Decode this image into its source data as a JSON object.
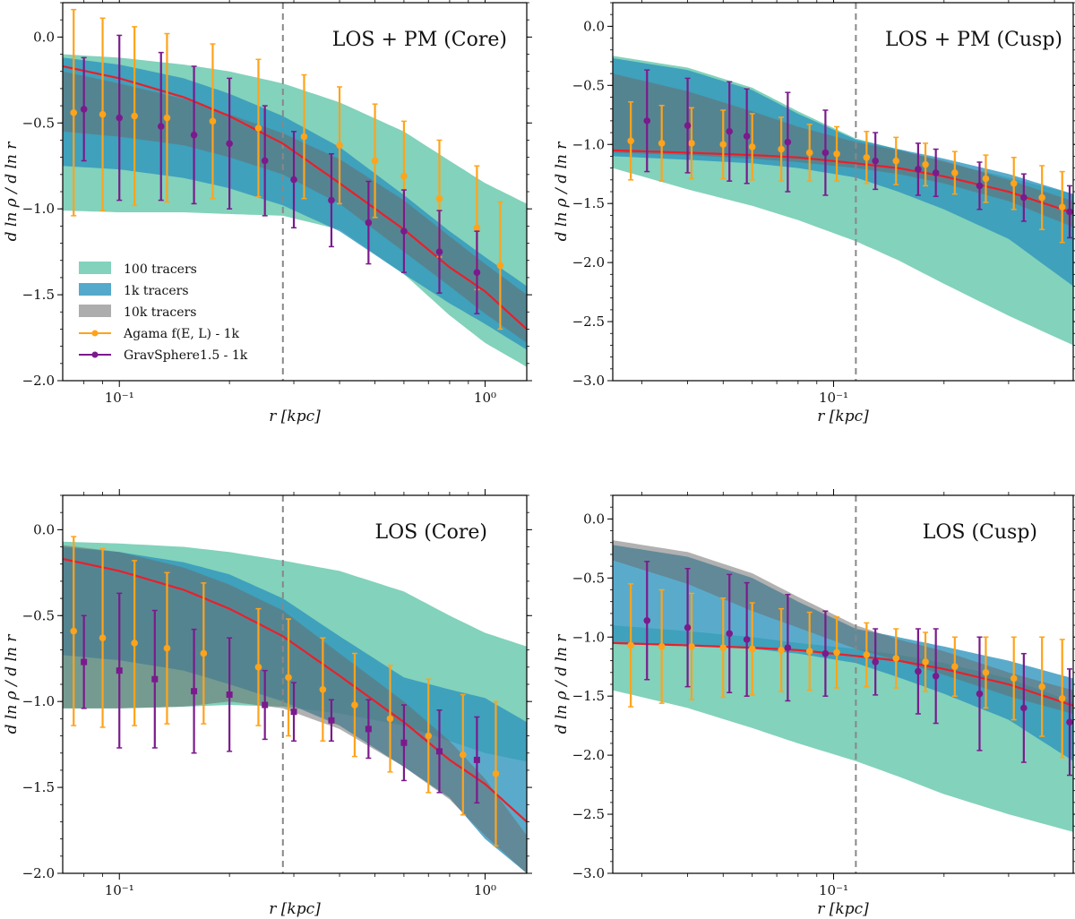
{
  "colors": {
    "band_100": "#7fd1b9",
    "band_1k": "#2b93bd",
    "band_10k": "#6a6a6a",
    "truth": "#e8202a",
    "agama": "#ffa31a",
    "gravsphere": "#7b1a8c",
    "rcut_line": "#888888"
  },
  "legend": {
    "items": [
      {
        "key": "band_100",
        "kind": "patch",
        "label": "100 tracers"
      },
      {
        "key": "band_1k",
        "kind": "patch",
        "label": "1k tracers"
      },
      {
        "key": "band_10k",
        "kind": "patch",
        "label": "10k tracers"
      },
      {
        "key": "agama",
        "kind": "errorbar",
        "label": "Agama f(E, L) - 1k"
      },
      {
        "key": "gravsphere",
        "kind": "errorbar",
        "label": "GravSphere1.5 - 1k"
      }
    ],
    "placement": "lower-left of top-left panel"
  },
  "chart_data": [
    {
      "id": "core_pm",
      "type": "line",
      "title": "LOS + PM (Core)",
      "xlabel": "r [kpc]",
      "ylabel": "d ln ρ / d ln r",
      "xscale": "log",
      "xlim": [
        0.07,
        1.3
      ],
      "ylim": [
        -2.0,
        0.2
      ],
      "xticks": [
        {
          "v": 0.1,
          "label": "10⁻¹"
        },
        {
          "v": 1.0,
          "label": "10⁰"
        }
      ],
      "yticks": [
        0.0,
        -0.5,
        -1.0,
        -1.5,
        -2.0
      ],
      "ytick_labels": [
        "0.0",
        "−0.5",
        "−1.0",
        "−1.5",
        "−2.0"
      ],
      "vline_x": 0.28,
      "bands": {
        "x": [
          0.07,
          0.1,
          0.15,
          0.2,
          0.28,
          0.4,
          0.6,
          0.8,
          1.0,
          1.3
        ],
        "band_100": {
          "upper": [
            -0.1,
            -0.12,
            -0.16,
            -0.2,
            -0.27,
            -0.38,
            -0.55,
            -0.72,
            -0.85,
            -0.97
          ],
          "lower": [
            -1.01,
            -1.02,
            -1.02,
            -1.03,
            -1.04,
            -1.12,
            -1.38,
            -1.62,
            -1.78,
            -1.92
          ]
        },
        "band_1k": {
          "upper": [
            -0.12,
            -0.16,
            -0.24,
            -0.33,
            -0.46,
            -0.64,
            -0.92,
            -1.13,
            -1.28,
            -1.45
          ],
          "lower": [
            -0.75,
            -0.77,
            -0.82,
            -0.88,
            -0.98,
            -1.13,
            -1.38,
            -1.55,
            -1.67,
            -1.82
          ]
        },
        "band_10k": {
          "upper": [
            -0.2,
            -0.27,
            -0.36,
            -0.45,
            -0.56,
            -0.71,
            -0.95,
            -1.16,
            -1.32,
            -1.5
          ],
          "lower": [
            -0.55,
            -0.58,
            -0.63,
            -0.7,
            -0.8,
            -0.97,
            -1.25,
            -1.45,
            -1.61,
            -1.78
          ]
        }
      },
      "truth": {
        "x": [
          0.07,
          0.1,
          0.15,
          0.2,
          0.28,
          0.4,
          0.6,
          0.8,
          1.0,
          1.3
        ],
        "y": [
          -0.17,
          -0.24,
          -0.35,
          -0.46,
          -0.62,
          -0.85,
          -1.12,
          -1.34,
          -1.48,
          -1.7
        ]
      },
      "agama": {
        "x": [
          0.075,
          0.09,
          0.11,
          0.135,
          0.18,
          0.24,
          0.32,
          0.4,
          0.5,
          0.6,
          0.75,
          0.95,
          1.1
        ],
        "y": [
          -0.44,
          -0.45,
          -0.46,
          -0.47,
          -0.49,
          -0.53,
          -0.58,
          -0.63,
          -0.72,
          -0.81,
          -0.94,
          -1.11,
          -1.33
        ],
        "err": [
          0.6,
          0.56,
          0.52,
          0.49,
          0.45,
          0.4,
          0.36,
          0.34,
          0.33,
          0.32,
          0.34,
          0.36,
          0.37
        ]
      },
      "gravsphere": {
        "x": [
          0.08,
          0.1,
          0.13,
          0.16,
          0.2,
          0.25,
          0.3,
          0.38,
          0.48,
          0.6,
          0.75,
          0.95
        ],
        "y": [
          -0.42,
          -0.47,
          -0.52,
          -0.57,
          -0.62,
          -0.72,
          -0.83,
          -0.95,
          -1.08,
          -1.13,
          -1.25,
          -1.37
        ],
        "err": [
          0.3,
          0.48,
          0.43,
          0.4,
          0.38,
          0.32,
          0.28,
          0.27,
          0.24,
          0.24,
          0.24,
          0.24
        ]
      }
    },
    {
      "id": "cusp_pm",
      "type": "line",
      "title": "LOS + PM (Cusp)",
      "xlabel": "r [kpc]",
      "ylabel": "d ln ρ / d ln r",
      "xscale": "log",
      "xlim": [
        0.025,
        0.45
      ],
      "ylim": [
        -3.0,
        0.2
      ],
      "xticks": [
        {
          "v": 0.1,
          "label": "10⁻¹"
        }
      ],
      "yticks": [
        0.0,
        -0.5,
        -1.0,
        -1.5,
        -2.0,
        -2.5,
        -3.0
      ],
      "ytick_labels": [
        "0.0",
        "−0.5",
        "−1.0",
        "−1.5",
        "−2.0",
        "−2.5",
        "−3.0"
      ],
      "vline_x": 0.115,
      "bands": {
        "x": [
          0.025,
          0.04,
          0.06,
          0.08,
          0.115,
          0.15,
          0.2,
          0.3,
          0.45
        ],
        "band_100": {
          "upper": [
            -0.25,
            -0.35,
            -0.52,
            -0.72,
            -0.95,
            -1.04,
            -1.15,
            -1.28,
            -1.42
          ],
          "lower": [
            -1.2,
            -1.38,
            -1.52,
            -1.64,
            -1.82,
            -1.98,
            -2.18,
            -2.45,
            -2.7
          ]
        },
        "band_1k": {
          "upper": [
            -0.27,
            -0.37,
            -0.54,
            -0.74,
            -0.96,
            -1.04,
            -1.12,
            -1.25,
            -1.42
          ],
          "lower": [
            -1.1,
            -1.13,
            -1.16,
            -1.2,
            -1.28,
            -1.4,
            -1.55,
            -1.8,
            -2.2
          ]
        },
        "band_10k": {
          "upper": [
            -0.4,
            -0.55,
            -0.72,
            -0.85,
            -0.98,
            -1.05,
            -1.14,
            -1.3,
            -1.48
          ],
          "lower": [
            -1.07,
            -1.09,
            -1.12,
            -1.15,
            -1.2,
            -1.25,
            -1.33,
            -1.48,
            -1.7
          ]
        }
      },
      "truth": {
        "x": [
          0.025,
          0.04,
          0.06,
          0.08,
          0.115,
          0.15,
          0.2,
          0.3,
          0.45
        ],
        "y": [
          -1.05,
          -1.07,
          -1.09,
          -1.11,
          -1.16,
          -1.2,
          -1.27,
          -1.4,
          -1.58
        ]
      },
      "agama": {
        "x": [
          0.028,
          0.034,
          0.041,
          0.05,
          0.06,
          0.072,
          0.086,
          0.102,
          0.123,
          0.148,
          0.178,
          0.214,
          0.26,
          0.31,
          0.37,
          0.42
        ],
        "y": [
          -0.97,
          -0.99,
          -0.99,
          -1.0,
          -1.02,
          -1.04,
          -1.07,
          -1.08,
          -1.11,
          -1.14,
          -1.17,
          -1.24,
          -1.29,
          -1.33,
          -1.45,
          -1.53
        ],
        "err": [
          0.33,
          0.32,
          0.3,
          0.29,
          0.28,
          0.27,
          0.24,
          0.23,
          0.22,
          0.2,
          0.18,
          0.18,
          0.2,
          0.22,
          0.27,
          0.3
        ]
      },
      "gravsphere": {
        "x": [
          0.031,
          0.04,
          0.052,
          0.058,
          0.075,
          0.095,
          0.13,
          0.17,
          0.19,
          0.25,
          0.33,
          0.44
        ],
        "y": [
          -0.8,
          -0.84,
          -0.89,
          -0.93,
          -0.98,
          -1.07,
          -1.14,
          -1.21,
          -1.24,
          -1.35,
          -1.45,
          -1.57
        ],
        "err": [
          0.43,
          0.4,
          0.42,
          0.4,
          0.42,
          0.36,
          0.24,
          0.22,
          0.2,
          0.2,
          0.2,
          0.22
        ]
      }
    },
    {
      "id": "core_los",
      "type": "line",
      "title": "LOS (Core)",
      "xlabel": "r [kpc]",
      "ylabel": "d ln ρ / d ln r",
      "xscale": "log",
      "xlim": [
        0.07,
        1.3
      ],
      "ylim": [
        -2.0,
        0.2
      ],
      "xticks": [
        {
          "v": 0.1,
          "label": "10⁻¹"
        },
        {
          "v": 1.0,
          "label": "10⁰"
        }
      ],
      "yticks": [
        0.0,
        -0.5,
        -1.0,
        -1.5,
        -2.0
      ],
      "ytick_labels": [
        "0.0",
        "−0.5",
        "−1.0",
        "−1.5",
        "−2.0"
      ],
      "vline_x": 0.28,
      "bands": {
        "x": [
          0.07,
          0.1,
          0.15,
          0.2,
          0.28,
          0.4,
          0.6,
          0.8,
          1.0,
          1.3
        ],
        "band_100": {
          "upper": [
            -0.07,
            -0.08,
            -0.1,
            -0.13,
            -0.18,
            -0.24,
            -0.36,
            -0.5,
            -0.6,
            -0.68
          ],
          "lower": [
            -1.04,
            -1.04,
            -1.03,
            -1.02,
            -1.03,
            -1.07,
            -1.14,
            -1.23,
            -1.3,
            -1.35
          ]
        },
        "band_1k": {
          "upper": [
            -0.1,
            -0.13,
            -0.19,
            -0.26,
            -0.4,
            -0.62,
            -0.86,
            -0.93,
            -0.98,
            -1.12
          ],
          "lower": [
            -0.73,
            -0.76,
            -0.82,
            -0.9,
            -1.0,
            -1.14,
            -1.38,
            -1.56,
            -1.8,
            -2.0
          ]
        },
        "band_10k": {
          "upper": [
            -0.09,
            -0.13,
            -0.22,
            -0.32,
            -0.47,
            -0.72,
            -1.0,
            -1.23,
            -1.45,
            -1.78
          ],
          "lower": [
            -1.04,
            -1.04,
            -1.03,
            -1.0,
            -1.04,
            -1.16,
            -1.38,
            -1.57,
            -1.78,
            -2.0
          ]
        }
      },
      "truth": {
        "x": [
          0.07,
          0.1,
          0.15,
          0.2,
          0.28,
          0.4,
          0.6,
          0.8,
          1.0,
          1.3
        ],
        "y": [
          -0.17,
          -0.24,
          -0.35,
          -0.46,
          -0.62,
          -0.85,
          -1.12,
          -1.34,
          -1.48,
          -1.7
        ]
      },
      "agama": {
        "x": [
          0.075,
          0.09,
          0.11,
          0.135,
          0.17,
          0.24,
          0.29,
          0.36,
          0.44,
          0.55,
          0.7,
          0.87,
          1.07
        ],
        "y": [
          -0.59,
          -0.63,
          -0.66,
          -0.69,
          -0.72,
          -0.8,
          -0.86,
          -0.93,
          -1.02,
          -1.1,
          -1.2,
          -1.31,
          -1.42
        ],
        "err": [
          0.55,
          0.52,
          0.48,
          0.44,
          0.41,
          0.34,
          0.34,
          0.3,
          0.3,
          0.31,
          0.33,
          0.35,
          0.42
        ]
      },
      "gravsphere": {
        "x": [
          0.08,
          0.1,
          0.125,
          0.16,
          0.2,
          0.25,
          0.3,
          0.38,
          0.48,
          0.6,
          0.75,
          0.95
        ],
        "y": [
          -0.77,
          -0.82,
          -0.87,
          -0.94,
          -0.96,
          -1.02,
          -1.06,
          -1.11,
          -1.16,
          -1.24,
          -1.29,
          -1.34
        ],
        "err": [
          0.27,
          0.45,
          0.4,
          0.36,
          0.33,
          0.2,
          0.17,
          0.12,
          0.17,
          0.22,
          0.24,
          0.25
        ]
      }
    },
    {
      "id": "cusp_los",
      "type": "line",
      "title": "LOS (Cusp)",
      "xlabel": "r [kpc]",
      "ylabel": "d ln ρ / d ln r",
      "xscale": "log",
      "xlim": [
        0.025,
        0.45
      ],
      "ylim": [
        -3.0,
        0.2
      ],
      "xticks": [
        {
          "v": 0.1,
          "label": "10⁻¹"
        }
      ],
      "yticks": [
        0.0,
        -0.5,
        -1.0,
        -1.5,
        -2.0,
        -2.5,
        -3.0
      ],
      "ytick_labels": [
        "0.0",
        "−0.5",
        "−1.0",
        "−1.5",
        "−2.0",
        "−2.5",
        "−3.0"
      ],
      "vline_x": 0.115,
      "bands": {
        "x": [
          0.025,
          0.04,
          0.06,
          0.08,
          0.115,
          0.15,
          0.2,
          0.3,
          0.45
        ],
        "band_100": {
          "upper": [
            -0.9,
            -0.95,
            -1.0,
            -1.05,
            -1.1,
            -1.15,
            -1.22,
            -1.35,
            -1.55
          ],
          "lower": [
            -1.45,
            -1.6,
            -1.77,
            -1.9,
            -2.05,
            -2.18,
            -2.33,
            -2.5,
            -2.65
          ]
        },
        "band_1k": {
          "upper": [
            -0.22,
            -0.32,
            -0.5,
            -0.7,
            -0.93,
            -1.0,
            -1.08,
            -1.2,
            -1.35
          ],
          "lower": [
            -1.05,
            -1.07,
            -1.1,
            -1.14,
            -1.22,
            -1.34,
            -1.48,
            -1.7,
            -2.05
          ]
        },
        "band_10k": {
          "upper": [
            -0.18,
            -0.28,
            -0.46,
            -0.66,
            -0.9,
            -1.02,
            -1.12,
            -1.3,
            -1.45
          ],
          "lower": [
            -0.35,
            -0.55,
            -0.78,
            -0.92,
            -1.1,
            -1.2,
            -1.32,
            -1.5,
            -1.65
          ]
        }
      },
      "truth": {
        "x": [
          0.025,
          0.04,
          0.06,
          0.08,
          0.115,
          0.15,
          0.2,
          0.3,
          0.45
        ],
        "y": [
          -1.05,
          -1.07,
          -1.09,
          -1.11,
          -1.16,
          -1.2,
          -1.27,
          -1.4,
          -1.58
        ]
      },
      "agama": {
        "x": [
          0.028,
          0.034,
          0.041,
          0.05,
          0.06,
          0.072,
          0.086,
          0.102,
          0.123,
          0.148,
          0.178,
          0.214,
          0.26,
          0.31,
          0.37,
          0.42
        ],
        "y": [
          -1.07,
          -1.08,
          -1.08,
          -1.09,
          -1.1,
          -1.11,
          -1.12,
          -1.13,
          -1.15,
          -1.18,
          -1.21,
          -1.25,
          -1.3,
          -1.35,
          -1.42,
          -1.52
        ],
        "err": [
          0.52,
          0.48,
          0.45,
          0.42,
          0.39,
          0.35,
          0.33,
          0.3,
          0.27,
          0.25,
          0.25,
          0.25,
          0.3,
          0.35,
          0.42,
          0.5
        ]
      },
      "gravsphere": {
        "x": [
          0.031,
          0.04,
          0.052,
          0.058,
          0.075,
          0.095,
          0.13,
          0.17,
          0.19,
          0.25,
          0.33,
          0.44
        ],
        "y": [
          -0.86,
          -0.92,
          -0.97,
          -1.02,
          -1.09,
          -1.14,
          -1.21,
          -1.29,
          -1.33,
          -1.48,
          -1.6,
          -1.72
        ],
        "err": [
          0.5,
          0.5,
          0.5,
          0.48,
          0.45,
          0.36,
          0.28,
          0.36,
          0.4,
          0.48,
          0.46,
          0.45
        ]
      }
    }
  ]
}
